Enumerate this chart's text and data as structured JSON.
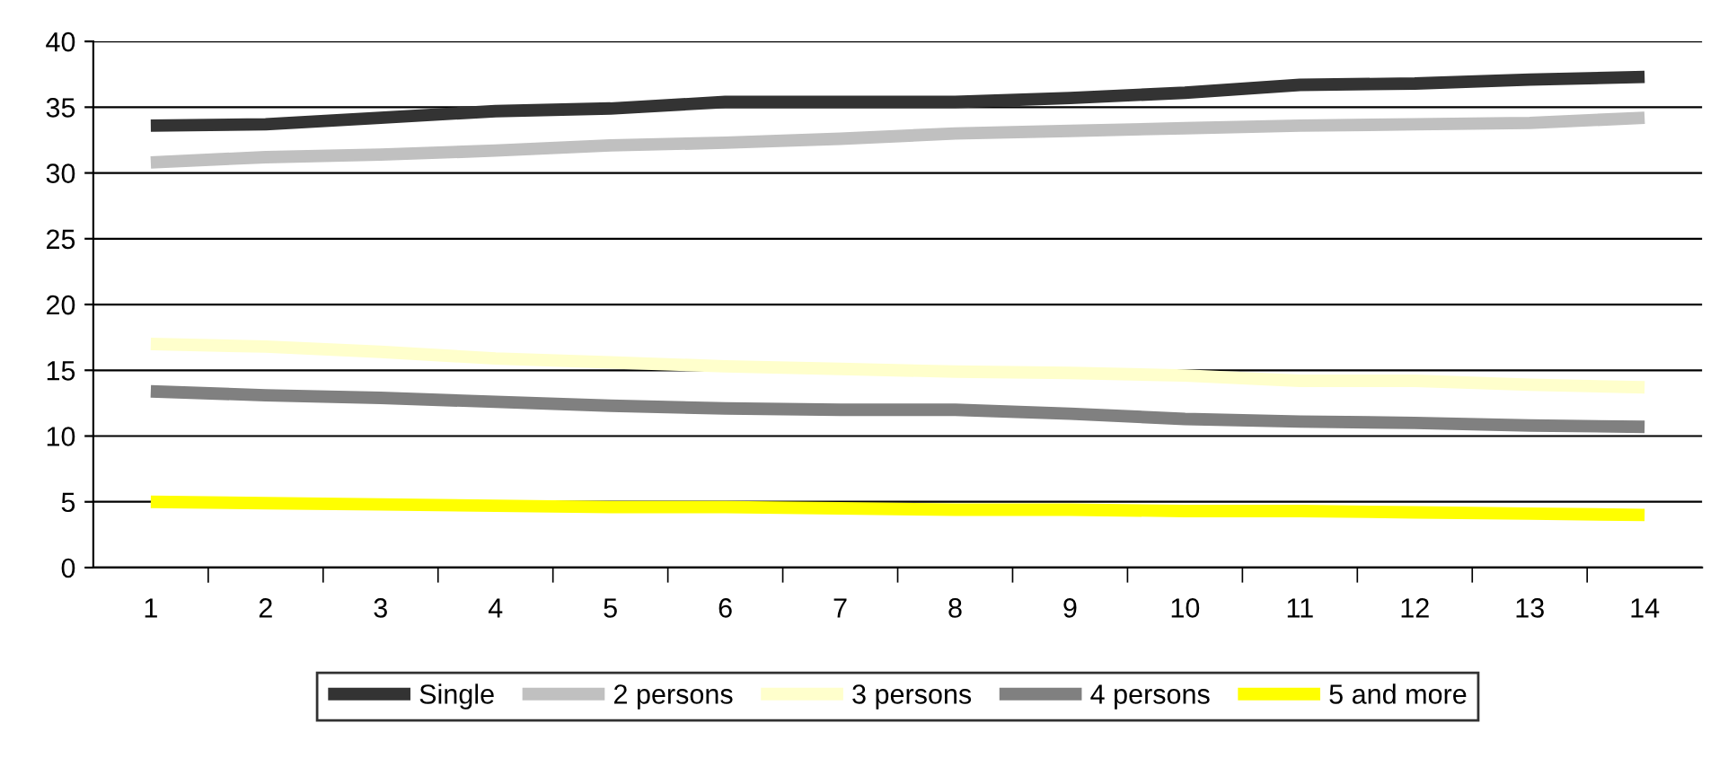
{
  "chart_data": {
    "type": "line",
    "categories": [
      "1",
      "2",
      "3",
      "4",
      "5",
      "6",
      "7",
      "8",
      "9",
      "10",
      "11",
      "12",
      "13",
      "14"
    ],
    "series": [
      {
        "name": "Single",
        "color": "#333333",
        "values": [
          33.6,
          33.7,
          34.2,
          34.7,
          34.9,
          35.4,
          35.4,
          35.4,
          35.7,
          36.1,
          36.7,
          36.8,
          37.1,
          37.3
        ]
      },
      {
        "name": "2 persons",
        "color": "#c0c0c0",
        "values": [
          30.8,
          31.2,
          31.4,
          31.7,
          32.1,
          32.3,
          32.6,
          33.0,
          33.2,
          33.4,
          33.6,
          33.7,
          33.8,
          34.2
        ]
      },
      {
        "name": "3 persons",
        "color": "#ffffcc",
        "values": [
          17.0,
          16.8,
          16.4,
          15.9,
          15.6,
          15.3,
          15.1,
          14.9,
          14.8,
          14.6,
          14.2,
          14.2,
          13.9,
          13.7
        ]
      },
      {
        "name": "4 persons",
        "color": "#808080",
        "values": [
          13.4,
          13.1,
          12.9,
          12.6,
          12.3,
          12.1,
          12.0,
          12.0,
          11.7,
          11.3,
          11.1,
          11.0,
          10.8,
          10.7
        ]
      },
      {
        "name": "5 and more",
        "color": "#ffff00",
        "values": [
          5.0,
          4.9,
          4.8,
          4.7,
          4.6,
          4.6,
          4.5,
          4.4,
          4.4,
          4.3,
          4.3,
          4.2,
          4.1,
          4.0
        ]
      }
    ],
    "ylim": [
      0,
      40
    ],
    "yticks": [
      0,
      5,
      10,
      15,
      20,
      25,
      30,
      35,
      40
    ],
    "grid": "y",
    "legend": "bottom",
    "marker": "none",
    "line_style": "solid"
  }
}
